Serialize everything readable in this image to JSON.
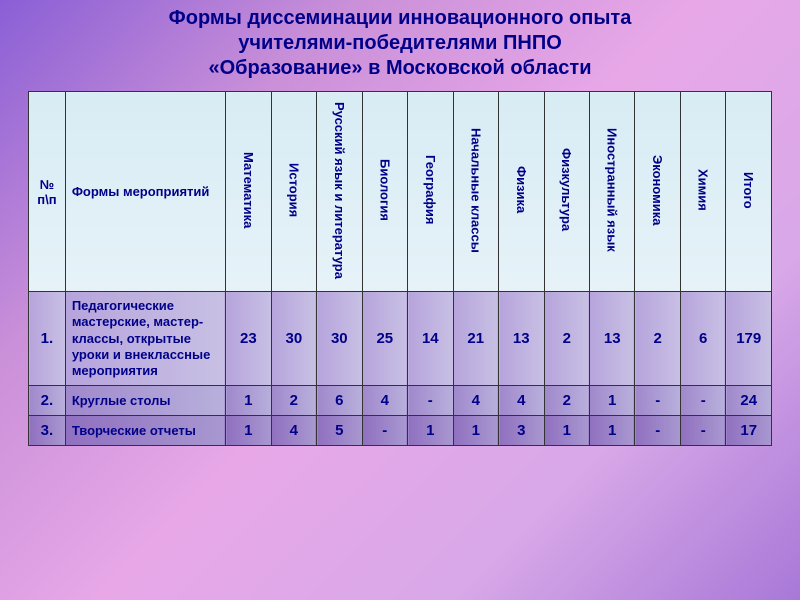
{
  "title_line1": "Формы диссеминации инновационного опыта",
  "title_line2": "учителями-победителями ПНПО",
  "title_line3": "«Образование» в Московской области",
  "columns": {
    "num": "№ п\\п",
    "form": "Формы мероприятий",
    "subjects": [
      "Математика",
      "История",
      "Русский язык и литература",
      "Биология",
      "География",
      "Начальные классы",
      "Физика",
      "Физкультура",
      "Иностранный язык",
      "Экономика",
      "Химия",
      "Итого"
    ]
  },
  "rows": [
    {
      "n": "1.",
      "form": "Педагогические мастерские, мастер-классы, открытые уроки и внеклассные мероприятия",
      "vals": [
        "23",
        "30",
        "30",
        "25",
        "14",
        "21",
        "13",
        "2",
        "13",
        "2",
        "6",
        "179"
      ]
    },
    {
      "n": "2.",
      "form": "Круглые столы",
      "vals": [
        "1",
        "2",
        "6",
        "4",
        "-",
        "4",
        "4",
        "2",
        "1",
        "-",
        "-",
        "24"
      ]
    },
    {
      "n": "3.",
      "form": "Творческие отчеты",
      "vals": [
        "1",
        "4",
        "5",
        "-",
        "1",
        "1",
        "3",
        "1",
        "1",
        "-",
        "-",
        "17"
      ]
    }
  ],
  "style": {
    "title_color": "#000088",
    "cell_text_color": "#000088",
    "header_bg_top": "#d8ecf4",
    "header_bg_bottom": "#e6f2f8",
    "row_bg": [
      "#b6a4dc",
      "#a088cc",
      "#9070c0"
    ],
    "border_color": "#333333",
    "background_gradient": [
      "#8a5fd6",
      "#c98fd8",
      "#e8a8e8",
      "#d8a8e8",
      "#a878d8"
    ],
    "title_fontsize": 20,
    "header_fontsize": 13,
    "cell_fontsize": 15
  }
}
